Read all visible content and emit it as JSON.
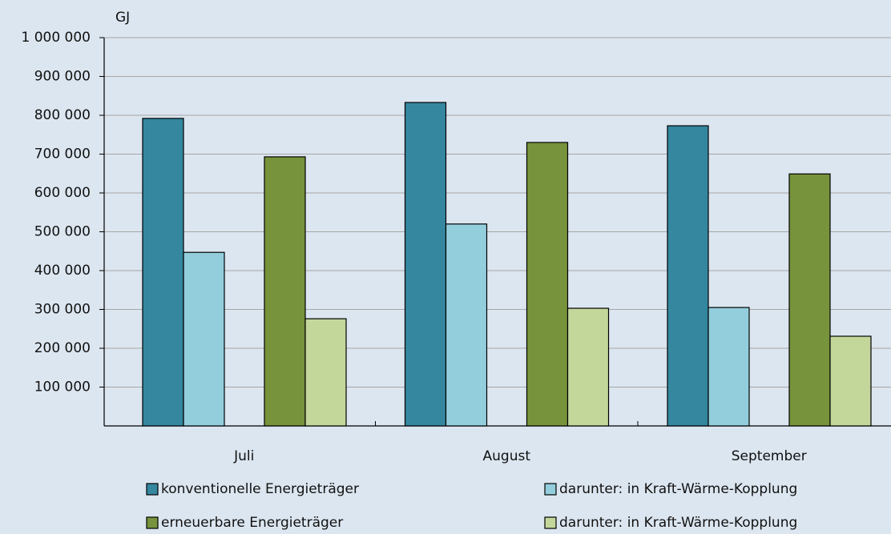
{
  "chart_data": {
    "type": "bar",
    "y_unit": "GJ",
    "categories": [
      "Juli",
      "August",
      "September"
    ],
    "series": [
      {
        "name": "konventionelle Energieträger",
        "color": "#35879f",
        "values": [
          792000,
          833000,
          773000
        ]
      },
      {
        "name": "darunter: in Kraft-Wärme-Kopplung",
        "color": "#93cedd",
        "values": [
          447000,
          520000,
          305000
        ]
      },
      {
        "name": "erneuerbare Energieträger",
        "color": "#77933c",
        "values": [
          693000,
          730000,
          649000
        ]
      },
      {
        "name": "darunter: in Kraft-Wärme-Kopplung",
        "color": "#c4d79b",
        "values": [
          276000,
          303000,
          231000
        ]
      }
    ],
    "ylim": [
      0,
      1000000
    ],
    "yticks": [
      {
        "value": 100000,
        "label": "100 000"
      },
      {
        "value": 200000,
        "label": "200 000"
      },
      {
        "value": 300000,
        "label": "300 000"
      },
      {
        "value": 400000,
        "label": "400 000"
      },
      {
        "value": 500000,
        "label": "500 000"
      },
      {
        "value": 600000,
        "label": "600 000"
      },
      {
        "value": 700000,
        "label": "700 000"
      },
      {
        "value": 800000,
        "label": "800 000"
      },
      {
        "value": 900000,
        "label": "900 000"
      },
      {
        "value": 1000000,
        "label": "1 000 000"
      }
    ],
    "grid": true
  }
}
